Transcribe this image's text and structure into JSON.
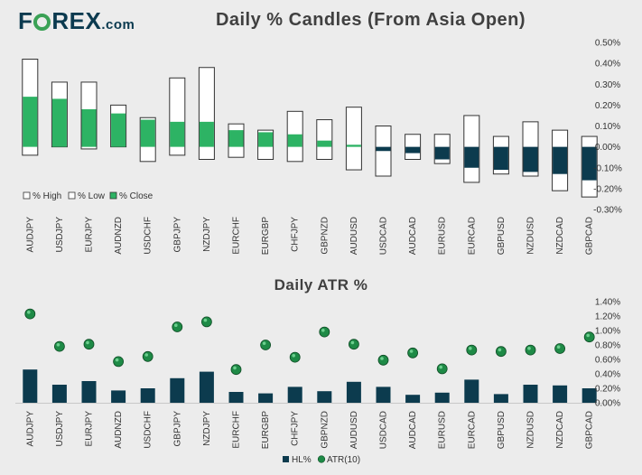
{
  "header": {
    "logo_left": "F",
    "logo_right": "REX",
    "logo_suffix": ".com"
  },
  "colors": {
    "close_green": "#2db364",
    "navy": "#0c3b4e",
    "box_border": "#333333",
    "axis": "#888888",
    "atr_green": "#1e8a46"
  },
  "chart_data": [
    {
      "type": "bar",
      "title": "Daily % Candles (From Asia Open)",
      "categories": [
        "AUDJPY",
        "USDJPY",
        "EURJPY",
        "AUDNZD",
        "USDCHF",
        "GBPJPY",
        "NZDJPY",
        "EURCHF",
        "EURGBP",
        "CHFJPY",
        "GBPNZD",
        "AUDUSD",
        "USDCAD",
        "AUDCAD",
        "EURUSD",
        "EURCAD",
        "GBPUSD",
        "NZDUSD",
        "NZDCAD",
        "GBPCAD"
      ],
      "series": [
        {
          "name": "% High",
          "values": [
            0.42,
            0.31,
            0.31,
            0.2,
            0.14,
            0.33,
            0.38,
            0.11,
            0.08,
            0.17,
            0.13,
            0.19,
            0.1,
            0.06,
            0.06,
            0.15,
            0.05,
            0.12,
            0.08,
            0.05
          ]
        },
        {
          "name": "% Low",
          "values": [
            -0.04,
            0.0,
            -0.01,
            0.0,
            -0.07,
            -0.04,
            -0.06,
            -0.05,
            -0.06,
            -0.07,
            -0.06,
            -0.11,
            -0.14,
            -0.06,
            -0.08,
            -0.17,
            -0.13,
            -0.14,
            -0.21,
            -0.24
          ]
        },
        {
          "name": "% Close",
          "values": [
            0.24,
            0.23,
            0.18,
            0.16,
            0.13,
            0.12,
            0.12,
            0.08,
            0.07,
            0.06,
            0.03,
            0.01,
            -0.02,
            -0.03,
            -0.06,
            -0.1,
            -0.11,
            -0.12,
            -0.13,
            -0.16
          ]
        }
      ],
      "y_ticks": [
        "0.50%",
        "0.40%",
        "0.30%",
        "0.20%",
        "0.10%",
        "0.00%",
        "-0.10%",
        "-0.20%",
        "-0.30%"
      ],
      "ylim": [
        -0.3,
        0.5
      ],
      "legend": [
        "% High",
        "% Low",
        "% Close"
      ],
      "legend_position": "bottom-left"
    },
    {
      "type": "bar",
      "title": "Daily ATR %",
      "categories": [
        "AUDJPY",
        "USDJPY",
        "EURJPY",
        "AUDNZD",
        "USDCHF",
        "GBPJPY",
        "NZDJPY",
        "EURCHF",
        "EURGBP",
        "CHFJPY",
        "GBPNZD",
        "AUDUSD",
        "USDCAD",
        "AUDCAD",
        "EURUSD",
        "EURCAD",
        "GBPUSD",
        "NZDUSD",
        "NZDCAD",
        "GBPCAD"
      ],
      "series": [
        {
          "name": "HL%",
          "type": "bar",
          "values": [
            0.46,
            0.25,
            0.3,
            0.17,
            0.2,
            0.34,
            0.43,
            0.15,
            0.13,
            0.22,
            0.16,
            0.29,
            0.22,
            0.11,
            0.14,
            0.32,
            0.12,
            0.25,
            0.24,
            0.2
          ]
        },
        {
          "name": "ATR(10)",
          "type": "scatter",
          "values": [
            1.23,
            0.78,
            0.81,
            0.57,
            0.64,
            1.05,
            1.12,
            0.46,
            0.8,
            0.63,
            0.98,
            0.81,
            0.59,
            0.69,
            0.47,
            0.73,
            0.71,
            0.73,
            0.75,
            0.91
          ]
        }
      ],
      "y_ticks": [
        "1.40%",
        "1.20%",
        "1.00%",
        "0.80%",
        "0.60%",
        "0.40%",
        "0.20%",
        "0.00%"
      ],
      "ylim": [
        0,
        1.4
      ],
      "legend": [
        "HL%",
        "ATR(10)"
      ],
      "legend_position": "bottom-center"
    }
  ]
}
